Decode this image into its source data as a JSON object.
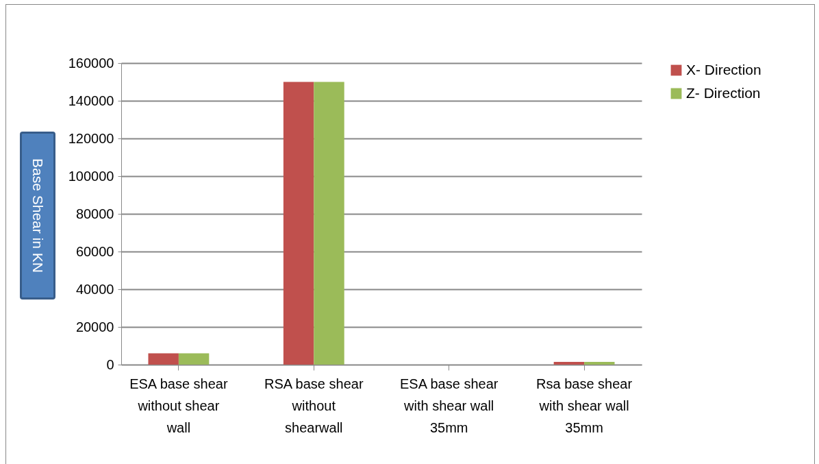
{
  "chart_data": {
    "type": "bar",
    "ylabel": "Base Shear in KN",
    "categories": [
      "ESA base shear without shear wall",
      "RSA base shear without shearwall",
      "ESA base shear with shear wall 35mm",
      "Rsa base shear with shear wall 35mm"
    ],
    "series": [
      {
        "name": "X- Direction",
        "color": "#c0504d",
        "values": [
          6000,
          150000,
          0,
          1500
        ]
      },
      {
        "name": "Z- Direction",
        "color": "#9bbb59",
        "values": [
          6000,
          150000,
          0,
          1500
        ]
      }
    ],
    "ylim": [
      0,
      160000
    ],
    "yticks": [
      0,
      20000,
      40000,
      60000,
      80000,
      100000,
      120000,
      140000,
      160000
    ],
    "grid": "y",
    "legend": "right"
  }
}
